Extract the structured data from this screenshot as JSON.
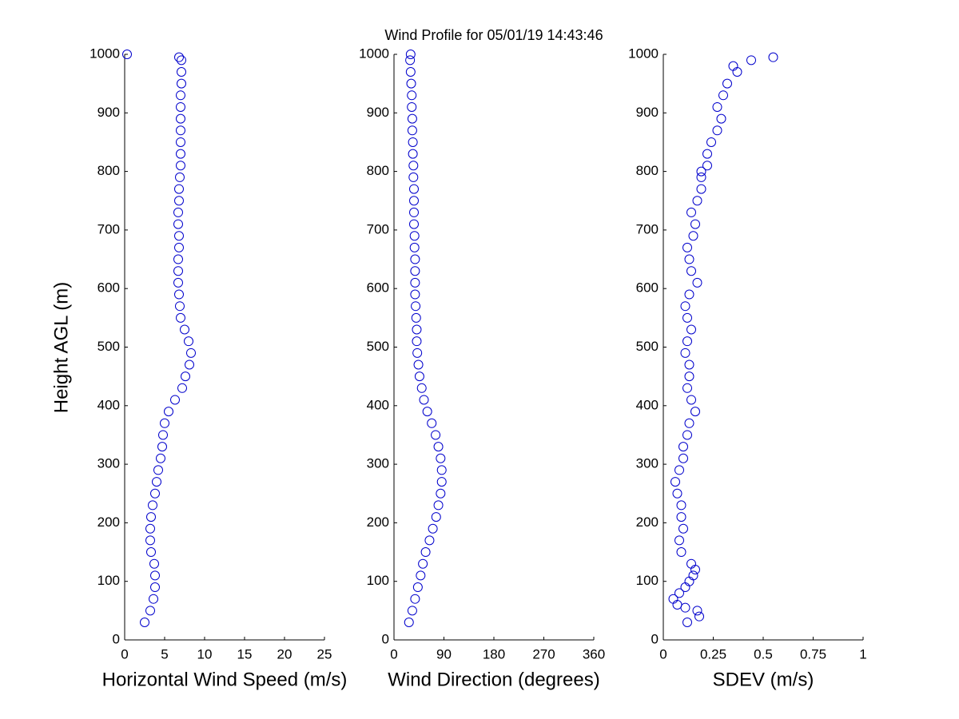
{
  "title": "Wind Profile for  05/01/19 14:43:46",
  "chart_data": [
    {
      "type": "scatter",
      "xlabel": "Horizontal Wind Speed (m/s)",
      "ylabel": "Height AGL (m)",
      "color": "#0000cc",
      "xlim": [
        0,
        25
      ],
      "xticks": [
        0,
        5,
        10,
        15,
        20,
        25
      ],
      "ylim": [
        0,
        1000
      ],
      "yticks": [
        0,
        100,
        200,
        300,
        400,
        500,
        600,
        700,
        800,
        900,
        1000
      ],
      "series": [
        {
          "x": [
            2.5,
            3.2,
            3.6,
            3.8,
            3.8,
            3.7,
            3.3,
            3.2,
            3.2,
            3.3,
            3.5,
            3.8,
            4.0,
            4.2,
            4.5,
            4.7,
            4.8,
            5.0,
            5.5,
            6.3,
            7.2,
            7.6,
            8.1,
            8.3,
            8.0,
            7.5,
            7.0,
            6.9,
            6.8,
            6.7,
            6.7,
            6.7,
            6.8,
            6.8,
            6.7,
            6.7,
            6.8,
            6.8,
            6.9,
            7.0,
            7.0,
            7.0,
            7.0,
            7.0,
            7.0,
            7.0,
            7.1,
            7.1,
            7.1,
            6.8,
            0.3
          ],
          "y": [
            30,
            50,
            70,
            90,
            110,
            130,
            150,
            170,
            190,
            210,
            230,
            250,
            270,
            290,
            310,
            330,
            350,
            370,
            390,
            410,
            430,
            450,
            470,
            490,
            510,
            530,
            550,
            570,
            590,
            610,
            630,
            650,
            670,
            690,
            710,
            730,
            750,
            770,
            790,
            810,
            830,
            850,
            870,
            890,
            910,
            930,
            950,
            970,
            990,
            995,
            1000
          ]
        }
      ]
    },
    {
      "type": "scatter",
      "xlabel": "Wind Direction (degrees)",
      "color": "#0000cc",
      "xlim": [
        0,
        360
      ],
      "xticks": [
        0,
        90,
        180,
        270,
        360
      ],
      "ylim": [
        0,
        1000
      ],
      "yticks": [
        0,
        100,
        200,
        300,
        400,
        500,
        600,
        700,
        800,
        900,
        1000
      ],
      "series": [
        {
          "x": [
            27,
            33,
            38,
            43,
            48,
            52,
            57,
            64,
            70,
            76,
            80,
            84,
            86,
            86,
            84,
            80,
            75,
            68,
            60,
            54,
            50,
            46,
            44,
            42,
            41,
            41,
            40,
            39,
            38,
            38,
            38,
            38,
            37,
            37,
            36,
            36,
            36,
            36,
            35,
            35,
            34,
            34,
            33,
            33,
            32,
            32,
            31,
            30,
            29,
            30
          ],
          "y": [
            30,
            50,
            70,
            90,
            110,
            130,
            150,
            170,
            190,
            210,
            230,
            250,
            270,
            290,
            310,
            330,
            350,
            370,
            390,
            410,
            430,
            450,
            470,
            490,
            510,
            530,
            550,
            570,
            590,
            610,
            630,
            650,
            670,
            690,
            710,
            730,
            750,
            770,
            790,
            810,
            830,
            850,
            870,
            890,
            910,
            930,
            950,
            970,
            990,
            1000
          ]
        }
      ]
    },
    {
      "type": "scatter",
      "xlabel": "SDEV  (m/s)",
      "color": "#0000cc",
      "xlim": [
        0,
        1
      ],
      "xticks": [
        0,
        0.25,
        0.5,
        0.75,
        1
      ],
      "ylim": [
        0,
        1000
      ],
      "yticks": [
        0,
        100,
        200,
        300,
        400,
        500,
        600,
        700,
        800,
        900,
        1000
      ],
      "series": [
        {
          "x": [
            0.12,
            0.18,
            0.17,
            0.11,
            0.07,
            0.05,
            0.08,
            0.11,
            0.13,
            0.15,
            0.16,
            0.14,
            0.09,
            0.08,
            0.1,
            0.09,
            0.09,
            0.07,
            0.06,
            0.08,
            0.1,
            0.1,
            0.12,
            0.13,
            0.16,
            0.14,
            0.12,
            0.13,
            0.13,
            0.11,
            0.12,
            0.14,
            0.12,
            0.11,
            0.13,
            0.17,
            0.14,
            0.13,
            0.12,
            0.15,
            0.16,
            0.14,
            0.17,
            0.19,
            0.19,
            0.19,
            0.22,
            0.22,
            0.24,
            0.27,
            0.29,
            0.27,
            0.3,
            0.32,
            0.37,
            0.35,
            0.44,
            0.55
          ],
          "y": [
            30,
            40,
            50,
            55,
            60,
            70,
            80,
            90,
            100,
            110,
            120,
            130,
            150,
            170,
            190,
            210,
            230,
            250,
            270,
            290,
            310,
            330,
            350,
            370,
            390,
            410,
            430,
            450,
            470,
            490,
            510,
            530,
            550,
            570,
            590,
            610,
            630,
            650,
            670,
            690,
            710,
            730,
            750,
            770,
            790,
            800,
            810,
            830,
            850,
            870,
            890,
            910,
            930,
            950,
            970,
            980,
            990,
            995
          ]
        }
      ]
    }
  ]
}
